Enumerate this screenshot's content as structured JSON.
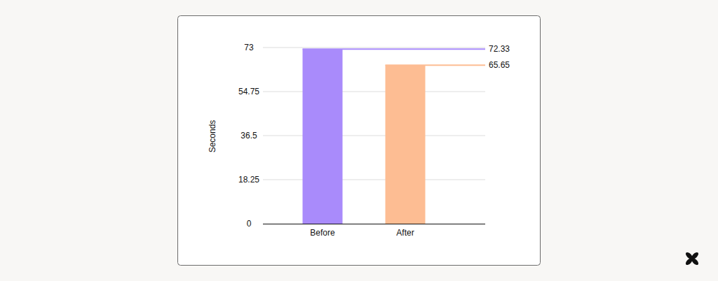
{
  "chart_data": {
    "type": "bar",
    "categories": [
      "Before",
      "After"
    ],
    "values": [
      72.33,
      65.65
    ],
    "colors": [
      "#a98bfb",
      "#fdbd93"
    ],
    "y_label": "Seconds",
    "ylim": [
      0,
      73
    ],
    "yticks": [
      0,
      18.25,
      36.5,
      54.75,
      73
    ],
    "grid": true,
    "data_labels": true
  }
}
